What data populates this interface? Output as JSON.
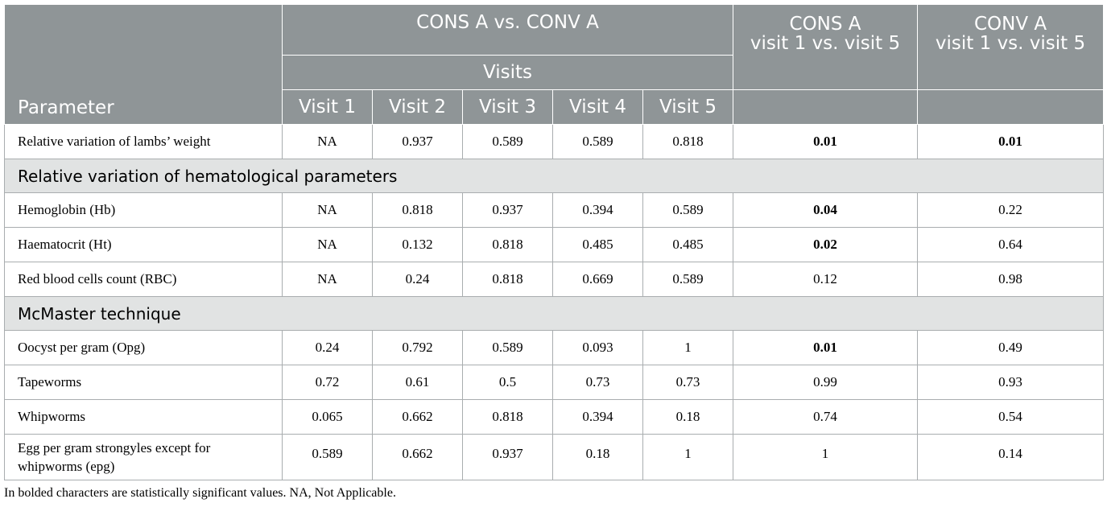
{
  "header": {
    "parameter": "Parameter",
    "group_ab": "CONS A vs. CONV A",
    "visits": "Visits",
    "visit_labels": [
      "Visit 1",
      "Visit 2",
      "Visit 3",
      "Visit 4",
      "Visit 5"
    ],
    "cons_line1": "CONS A",
    "cons_line2": "visit 1 vs. visit 5",
    "conv_line1": "CONV A",
    "conv_line2": "visit 1 vs. visit 5"
  },
  "rows": [
    {
      "param": "Relative variation of lambs’ weight",
      "v": [
        "NA",
        "0.937",
        "0.589",
        "0.589",
        "0.818"
      ],
      "cons": "0.01",
      "conv": "0.01"
    },
    {
      "section": "Relative variation of hematological parameters"
    },
    {
      "param": "Hemoglobin (Hb)",
      "v": [
        "NA",
        "0.818",
        "0.937",
        "0.394",
        "0.589"
      ],
      "cons": "0.04",
      "conv": "0.22"
    },
    {
      "param": "Haematocrit (Ht)",
      "v": [
        "NA",
        "0.132",
        "0.818",
        "0.485",
        "0.485"
      ],
      "cons": "0.02",
      "conv": "0.64"
    },
    {
      "param": "Red blood cells count (RBC)",
      "v": [
        "NA",
        "0.24",
        "0.818",
        "0.669",
        "0.589"
      ],
      "cons": "0.12",
      "conv": "0.98"
    },
    {
      "section": "McMaster technique"
    },
    {
      "param": "Oocyst per gram (Opg)",
      "v": [
        "0.24",
        "0.792",
        "0.589",
        "0.093",
        "1"
      ],
      "cons": "0.01",
      "conv": "0.49"
    },
    {
      "param": "Tapeworms",
      "v": [
        "0.72",
        "0.61",
        "0.5",
        "0.73",
        "0.73"
      ],
      "cons": "0.99",
      "conv": "0.93"
    },
    {
      "param": "Whipworms",
      "v": [
        "0.065",
        "0.662",
        "0.818",
        "0.394",
        "0.18"
      ],
      "cons": "0.74",
      "conv": "0.54"
    },
    {
      "param_line1": "Egg per gram strongyles except for",
      "param_line2": "whipworms (epg)",
      "v": [
        "0.589",
        "0.662",
        "0.937",
        "0.18",
        "1"
      ],
      "cons": "1",
      "conv": "0.14"
    }
  ],
  "footnote": "In bolded characters are statistically significant values. NA, Not Applicable."
}
